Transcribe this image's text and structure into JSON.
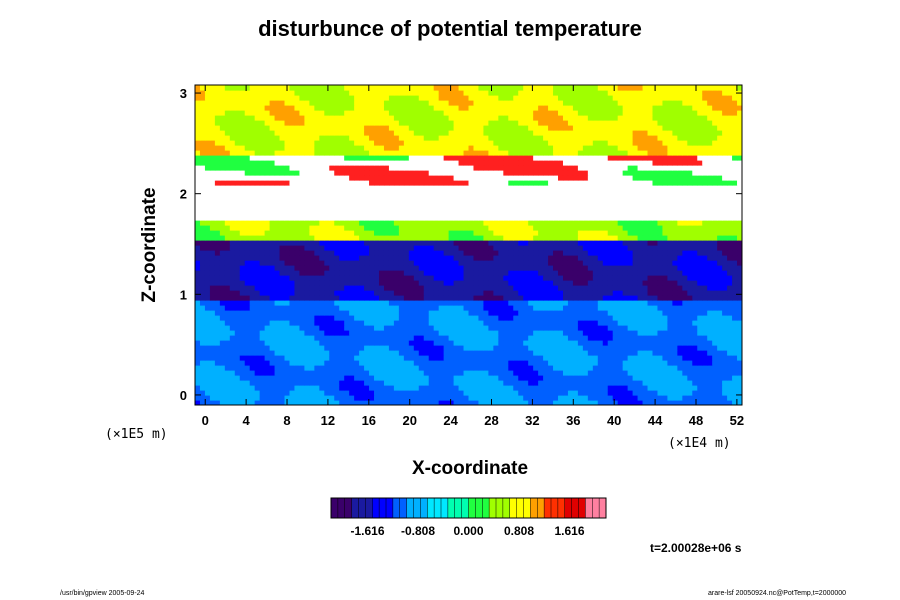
{
  "chart_data": {
    "type": "heatmap",
    "title": "disturbunce of potential temperature",
    "xlabel": "X-coordinate",
    "ylabel": "Z-coordinate",
    "x_unit": "(×1E4 m)",
    "z_unit": "(×1E5 m)",
    "xlim": [
      -1,
      52.5
    ],
    "ylim": [
      -0.1,
      3.08
    ],
    "x_ticks": [
      0,
      4,
      8,
      12,
      16,
      20,
      24,
      28,
      32,
      36,
      40,
      44,
      48,
      52
    ],
    "y_ticks": [
      0,
      1,
      2,
      3
    ],
    "colorbar": {
      "ticks": [
        -1.616,
        -0.808,
        0.0,
        0.808,
        1.616
      ],
      "tick_labels": [
        "-1.616",
        "-0.808",
        "0.000",
        "0.808",
        "1.616"
      ],
      "range": [
        -2.2,
        2.2
      ],
      "colors": [
        "#3a006a",
        "#1a1aa0",
        "#0000ff",
        "#0060ff",
        "#00b0ff",
        "#00e8ff",
        "#00ffb0",
        "#20ff40",
        "#a0ff00",
        "#ffff00",
        "#ffa000",
        "#ff3000",
        "#e00000",
        "#ff80a0"
      ]
    },
    "regions": [
      {
        "z_range": [
          -0.1,
          0.95
        ],
        "level": -1.0
      },
      {
        "z_range": [
          0.95,
          1.55
        ],
        "level": -1.7
      },
      {
        "z_range": [
          1.55,
          1.72
        ],
        "level": 0.5
      },
      {
        "z_range": [
          1.72,
          1.85
        ],
        "level": "white"
      },
      {
        "z_range": [
          1.85,
          2.1
        ],
        "level": "white"
      },
      {
        "z_range": [
          2.1,
          2.4
        ],
        "level": "white-bands"
      },
      {
        "z_range": [
          2.4,
          3.08
        ],
        "level": 0.7
      }
    ],
    "time_label": "t=2.00028e+06 s"
  },
  "footer": {
    "left": "/usr/bin/gpview 2005-09-24",
    "right": "arare-lsf 20050924.nc@PotTemp,t=2000000"
  }
}
